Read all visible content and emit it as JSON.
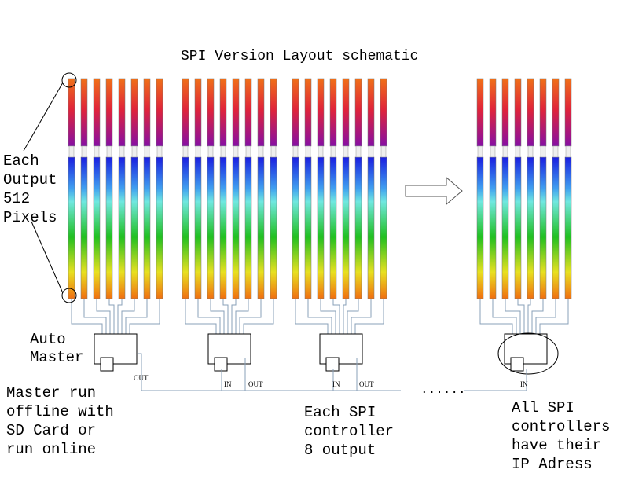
{
  "title": "SPI Version Layout schematic",
  "notes": {
    "output": [
      "Each",
      "Output",
      "512",
      "Pixels"
    ],
    "auto_master": [
      "Auto",
      "Master"
    ],
    "master": [
      "Master run",
      "offline with",
      "SD Card or",
      "run online"
    ],
    "controller": [
      "Each SPI",
      "controller",
      "8 output"
    ],
    "all": [
      "All SPI",
      "controllers",
      "have their",
      "IP Adress"
    ]
  },
  "ports": [
    "OUT",
    "IN",
    "OUT",
    "IN",
    "OUT",
    "IN"
  ],
  "ellipsis": "......"
}
